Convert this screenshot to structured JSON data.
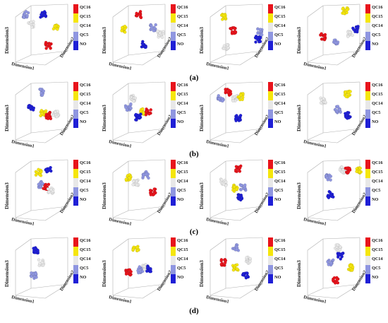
{
  "figure": {
    "row_labels": [
      "(a)",
      "(b)",
      "(c)",
      "(d)"
    ]
  },
  "axis_labels": {
    "x": "Dimension1",
    "y": "Dimension2",
    "z": "Dimension3"
  },
  "legend": {
    "entries": [
      {
        "label": "QC16",
        "color": "#e8141c"
      },
      {
        "label": "QC15",
        "color": "#f5e60c"
      },
      {
        "label": "QC14",
        "color": "#e8e8e8"
      },
      {
        "label": "QC5",
        "color": "#8f96e0"
      },
      {
        "label": "NO",
        "color": "#1f1fd6"
      }
    ]
  },
  "chart_data": [
    {
      "type": "scatter",
      "row": "(a)",
      "clusters": [
        {
          "class": "NO",
          "x": 0.45,
          "y": 0.6,
          "z": 0.85
        },
        {
          "class": "QC14",
          "x": 0.2,
          "y": 0.45,
          "z": 0.65
        },
        {
          "class": "QC15",
          "x": 0.7,
          "y": 0.6,
          "z": 0.6
        },
        {
          "class": "QC16",
          "x": 0.55,
          "y": 0.1,
          "z": 0.22
        },
        {
          "class": "QC5",
          "x": 0.1,
          "y": 0.55,
          "z": 0.85
        }
      ]
    },
    {
      "type": "scatter",
      "row": "(a)",
      "clusters": [
        {
          "class": "QC16",
          "x": 0.4,
          "y": 0.7,
          "z": 0.85
        },
        {
          "class": "QC15",
          "x": 0.1,
          "y": 0.5,
          "z": 0.55
        },
        {
          "class": "QC5",
          "x": 0.7,
          "y": 0.6,
          "z": 0.58
        },
        {
          "class": "QC14",
          "x": 0.85,
          "y": 0.55,
          "z": 0.45
        },
        {
          "class": "NO",
          "x": 0.5,
          "y": 0.15,
          "z": 0.25
        }
      ]
    },
    {
      "type": "scatter",
      "row": "(a)",
      "clusters": [
        {
          "class": "QC15",
          "x": 0.15,
          "y": 0.7,
          "z": 0.8
        },
        {
          "class": "QC16",
          "x": 0.35,
          "y": 0.55,
          "z": 0.52
        },
        {
          "class": "QC14",
          "x": 0.2,
          "y": 0.1,
          "z": 0.18
        },
        {
          "class": "NO",
          "x": 0.85,
          "y": 0.35,
          "z": 0.35
        },
        {
          "class": "QC5",
          "x": 0.9,
          "y": 0.5,
          "z": 0.5
        }
      ]
    },
    {
      "type": "scatter",
      "row": "(a)",
      "clusters": [
        {
          "class": "QC15",
          "x": 0.65,
          "y": 0.8,
          "z": 0.92
        },
        {
          "class": "QC16",
          "x": 0.2,
          "y": 0.35,
          "z": 0.4
        },
        {
          "class": "QC5",
          "x": 0.45,
          "y": 0.3,
          "z": 0.3
        },
        {
          "class": "QC14",
          "x": 0.75,
          "y": 0.45,
          "z": 0.45
        },
        {
          "class": "NO",
          "x": 0.85,
          "y": 0.55,
          "z": 0.55
        }
      ]
    },
    {
      "type": "scatter",
      "row": "(b)",
      "clusters": [
        {
          "class": "QC5",
          "x": 0.4,
          "y": 0.75,
          "z": 0.85
        },
        {
          "class": "NO",
          "x": 0.2,
          "y": 0.5,
          "z": 0.55
        },
        {
          "class": "QC15",
          "x": 0.45,
          "y": 0.4,
          "z": 0.42
        },
        {
          "class": "QC16",
          "x": 0.55,
          "y": 0.35,
          "z": 0.38
        },
        {
          "class": "QC14",
          "x": 0.7,
          "y": 0.4,
          "z": 0.4
        }
      ]
    },
    {
      "type": "scatter",
      "row": "(b)",
      "clusters": [
        {
          "class": "QC14",
          "x": 0.3,
          "y": 0.7,
          "z": 0.72
        },
        {
          "class": "QC5",
          "x": 0.2,
          "y": 0.5,
          "z": 0.55
        },
        {
          "class": "QC15",
          "x": 0.5,
          "y": 0.45,
          "z": 0.45
        },
        {
          "class": "NO",
          "x": 0.4,
          "y": 0.3,
          "z": 0.35
        },
        {
          "class": "QC16",
          "x": 0.6,
          "y": 0.5,
          "z": 0.45
        }
      ]
    },
    {
      "type": "scatter",
      "row": "(b)",
      "clusters": [
        {
          "class": "QC5",
          "x": 0.1,
          "y": 0.7,
          "z": 0.72
        },
        {
          "class": "QC16",
          "x": 0.25,
          "y": 0.85,
          "z": 0.85
        },
        {
          "class": "QC14",
          "x": 0.4,
          "y": 0.75,
          "z": 0.72
        },
        {
          "class": "QC15",
          "x": 0.5,
          "y": 0.78,
          "z": 0.76
        },
        {
          "class": "NO",
          "x": 0.45,
          "y": 0.3,
          "z": 0.32
        }
      ]
    },
    {
      "type": "scatter",
      "row": "(b)",
      "clusters": [
        {
          "class": "QC14",
          "x": 0.2,
          "y": 0.7,
          "z": 0.68
        },
        {
          "class": "QC15",
          "x": 0.7,
          "y": 0.85,
          "z": 0.82
        },
        {
          "class": "QC5",
          "x": 0.5,
          "y": 0.45,
          "z": 0.5
        },
        {
          "class": "NO",
          "x": 0.7,
          "y": 0.3,
          "z": 0.38
        }
      ]
    },
    {
      "type": "scatter",
      "row": "(c)",
      "clusters": [
        {
          "class": "QC15",
          "x": 0.35,
          "y": 0.8,
          "z": 0.8
        },
        {
          "class": "NO",
          "x": 0.55,
          "y": 0.75,
          "z": 0.85
        },
        {
          "class": "QC5",
          "x": 0.4,
          "y": 0.5,
          "z": 0.55
        },
        {
          "class": "QC16",
          "x": 0.5,
          "y": 0.5,
          "z": 0.52
        },
        {
          "class": "QC14",
          "x": 0.6,
          "y": 0.45,
          "z": 0.42
        }
      ]
    },
    {
      "type": "scatter",
      "row": "(c)",
      "clusters": [
        {
          "class": "QC15",
          "x": 0.2,
          "y": 0.7,
          "z": 0.7
        },
        {
          "class": "QC14",
          "x": 0.35,
          "y": 0.6,
          "z": 0.6
        },
        {
          "class": "QC5",
          "x": 0.55,
          "y": 0.75,
          "z": 0.75
        },
        {
          "class": "QC16",
          "x": 0.7,
          "y": 0.5,
          "z": 0.4
        }
      ]
    },
    {
      "type": "scatter",
      "row": "(c)",
      "clusters": [
        {
          "class": "QC16",
          "x": 0.45,
          "y": 0.85,
          "z": 0.88
        },
        {
          "class": "QC14",
          "x": 0.15,
          "y": 0.6,
          "z": 0.6
        },
        {
          "class": "QC15",
          "x": 0.4,
          "y": 0.45,
          "z": 0.48
        },
        {
          "class": "NO",
          "x": 0.5,
          "y": 0.3,
          "z": 0.3
        },
        {
          "class": "QC5",
          "x": 0.55,
          "y": 0.5,
          "z": 0.5
        }
      ]
    },
    {
      "type": "scatter",
      "row": "(c)",
      "clusters": [
        {
          "class": "QC5",
          "x": 0.3,
          "y": 0.65,
          "z": 0.7
        },
        {
          "class": "NO",
          "x": 0.35,
          "y": 0.35,
          "z": 0.35
        },
        {
          "class": "QC14",
          "x": 0.6,
          "y": 0.85,
          "z": 0.85
        },
        {
          "class": "QC16",
          "x": 0.7,
          "y": 0.85,
          "z": 0.85
        },
        {
          "class": "QC15",
          "x": 0.92,
          "y": 0.85,
          "z": 0.85
        }
      ]
    },
    {
      "type": "scatter",
      "row": "(d)",
      "clusters": [
        {
          "class": "NO",
          "x": 0.3,
          "y": 0.8,
          "z": 0.8
        },
        {
          "class": "QC14",
          "x": 0.4,
          "y": 0.55,
          "z": 0.55
        },
        {
          "class": "QC5",
          "x": 0.25,
          "y": 0.25,
          "z": 0.28
        }
      ]
    },
    {
      "type": "scatter",
      "row": "(d)",
      "clusters": [
        {
          "class": "QC15",
          "x": 0.35,
          "y": 0.85,
          "z": 0.85
        },
        {
          "class": "QC16",
          "x": 0.2,
          "y": 0.35,
          "z": 0.35
        },
        {
          "class": "QC5",
          "x": 0.45,
          "y": 0.5,
          "z": 0.4
        },
        {
          "class": "QC14",
          "x": 0.55,
          "y": 0.5,
          "z": 0.45
        },
        {
          "class": "NO",
          "x": 0.6,
          "y": 0.45,
          "z": 0.42
        }
      ]
    },
    {
      "type": "scatter",
      "row": "(d)",
      "clusters": [
        {
          "class": "QC5",
          "x": 0.4,
          "y": 0.85,
          "z": 0.85
        },
        {
          "class": "QC16",
          "x": 0.15,
          "y": 0.5,
          "z": 0.55
        },
        {
          "class": "QC15",
          "x": 0.4,
          "y": 0.45,
          "z": 0.45
        },
        {
          "class": "QC14",
          "x": 0.65,
          "y": 0.6,
          "z": 0.6
        },
        {
          "class": "NO",
          "x": 0.6,
          "y": 0.3,
          "z": 0.28
        }
      ]
    },
    {
      "type": "scatter",
      "row": "(d)",
      "clusters": [
        {
          "class": "QC14",
          "x": 0.5,
          "y": 0.8,
          "z": 0.85
        },
        {
          "class": "NO",
          "x": 0.55,
          "y": 0.65,
          "z": 0.68
        },
        {
          "class": "QC5",
          "x": 0.35,
          "y": 0.55,
          "z": 0.55
        },
        {
          "class": "QC15",
          "x": 0.75,
          "y": 0.5,
          "z": 0.45
        },
        {
          "class": "QC16",
          "x": 0.45,
          "y": 0.2,
          "z": 0.2
        }
      ]
    }
  ]
}
